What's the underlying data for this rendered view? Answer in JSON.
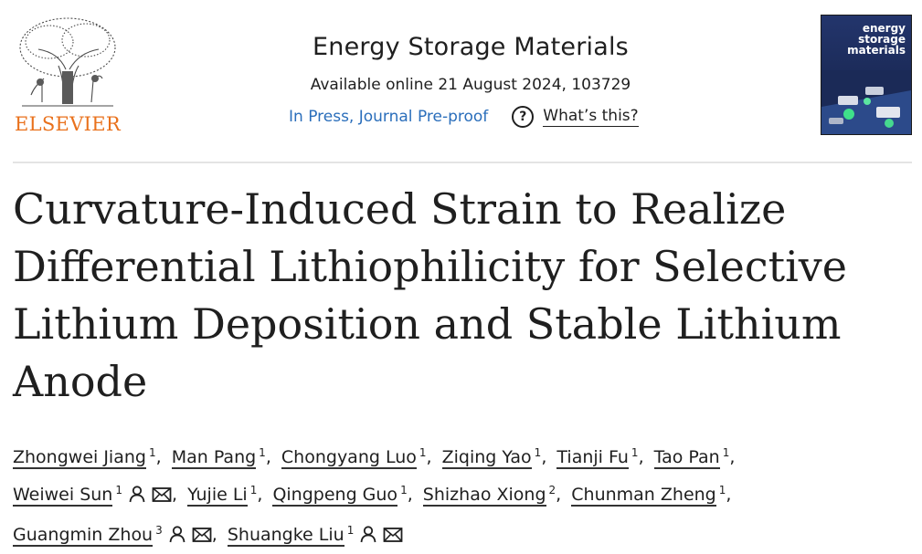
{
  "publisher": {
    "name": "ELSEVIER"
  },
  "journal": {
    "name": "Energy Storage Materials",
    "availability": "Available online 21 August 2024, 103729",
    "status": "In Press, Journal Pre-proof",
    "help_label": "What’s this?",
    "cover_title": "energy\nstorage\nmaterials"
  },
  "article": {
    "title": "Curvature-Induced Strain to Realize Differential Lithiophilicity for Selective Lithium Deposition and Stable Lithium Anode"
  },
  "authors": [
    {
      "name": "Zhongwei Jiang",
      "aff": "1"
    },
    {
      "name": "Man Pang",
      "aff": "1"
    },
    {
      "name": "Chongyang Luo",
      "aff": "1"
    },
    {
      "name": "Ziqing Yao",
      "aff": "1"
    },
    {
      "name": "Tianji Fu",
      "aff": "1"
    },
    {
      "name": "Tao Pan",
      "aff": "1"
    },
    {
      "name": "Weiwei Sun",
      "aff": "1",
      "corresponding": true
    },
    {
      "name": "Yujie Li",
      "aff": "1"
    },
    {
      "name": "Qingpeng Guo",
      "aff": "1"
    },
    {
      "name": "Shizhao Xiong",
      "aff": "2"
    },
    {
      "name": "Chunman Zheng",
      "aff": "1"
    },
    {
      "name": "Guangmin Zhou",
      "aff": "3",
      "corresponding": true
    },
    {
      "name": "Shuangke Liu",
      "aff": "1",
      "corresponding": true
    }
  ],
  "colors": {
    "link": "#2a6ebb",
    "elsevier_orange": "#e9711c",
    "text": "#1f1f1f"
  },
  "icons": [
    "elsevier-tree-logo",
    "question-circle-icon",
    "person-icon",
    "envelope-icon"
  ]
}
